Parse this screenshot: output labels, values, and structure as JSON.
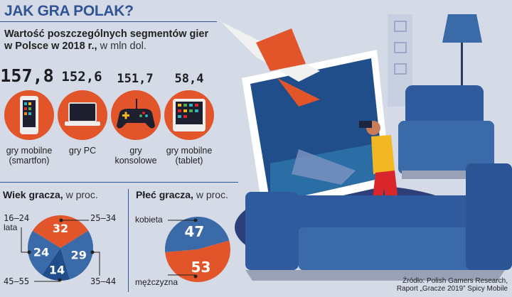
{
  "title": "JAK GRA POLAK?",
  "subtitle": {
    "line1": "Wartość poszczególnych segmentów gier",
    "line2_bold": "w Polsce w 2018 r.,",
    "line2_unit": "w mln dol."
  },
  "segments": [
    {
      "value": "157,8",
      "label1": "gry mobilne",
      "label2": "(smartfon)",
      "icon": "smartphone-icon"
    },
    {
      "value": "152,6",
      "label1": "gry PC",
      "label2": "",
      "icon": "laptop-icon"
    },
    {
      "value": "151,7",
      "label1": "gry",
      "label2": "konsolowe",
      "icon": "gamepad-icon"
    },
    {
      "value": "58,4",
      "label1": "gry mobilne",
      "label2": "(tablet)",
      "icon": "tablet-icon"
    }
  ],
  "colors": {
    "title": "#2f5596",
    "orange": "#e2552b",
    "blue": "#3a6aa8",
    "dark_blue": "#1f4e8a",
    "background": "#d5dae7"
  },
  "chart_data": [
    {
      "type": "pie",
      "title": "Wiek gracza,",
      "unit": "w proc.",
      "categories": [
        "25–34",
        "35–44",
        "45–55",
        "16–24 lata"
      ],
      "values": [
        32,
        29,
        14,
        24
      ],
      "colors": [
        "#e2552b",
        "#3a6aa8",
        "#1f4e8a",
        "#3a6aa8"
      ]
    },
    {
      "type": "pie",
      "title": "Płeć gracza,",
      "unit": "w proc.",
      "categories": [
        "kobieta",
        "mężczyzna"
      ],
      "values": [
        47,
        53
      ],
      "colors": [
        "#3a6aa8",
        "#e2552b"
      ]
    }
  ],
  "age_labels": {
    "a": "16–24",
    "a2": "lata",
    "b": "25–34",
    "c": "35–44",
    "d": "45–55"
  },
  "source": {
    "line1": "Źródło: Polish Gamers Research,",
    "line2": "Raport „Gracze 2019” Spicy Mobile"
  }
}
